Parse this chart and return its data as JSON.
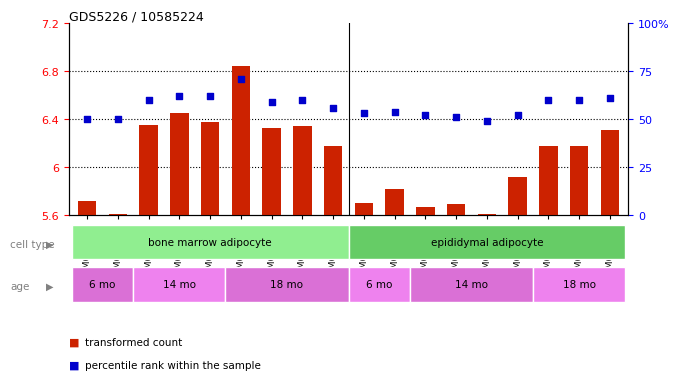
{
  "title": "GDS5226 / 10585224",
  "samples": [
    "GSM635884",
    "GSM635885",
    "GSM635886",
    "GSM635890",
    "GSM635891",
    "GSM635892",
    "GSM635896",
    "GSM635897",
    "GSM635898",
    "GSM635887",
    "GSM635888",
    "GSM635889",
    "GSM635893",
    "GSM635894",
    "GSM635895",
    "GSM635899",
    "GSM635900",
    "GSM635901"
  ],
  "bar_values": [
    5.72,
    5.61,
    6.35,
    6.45,
    6.38,
    6.84,
    6.33,
    6.34,
    6.18,
    5.7,
    5.82,
    5.67,
    5.69,
    5.61,
    5.92,
    6.18,
    6.18,
    6.31
  ],
  "dot_values": [
    50,
    50,
    60,
    62,
    62,
    71,
    59,
    60,
    56,
    53,
    54,
    52,
    51,
    49,
    52,
    60,
    60,
    61
  ],
  "bar_color": "#cc2200",
  "dot_color": "#0000cc",
  "ylim_left": [
    5.6,
    7.2
  ],
  "ylim_right": [
    0,
    100
  ],
  "yticks_left": [
    5.6,
    6.0,
    6.4,
    6.8,
    7.2
  ],
  "yticks_right": [
    0,
    25,
    50,
    75,
    100
  ],
  "ytick_labels_left": [
    "5.6",
    "6",
    "6.4",
    "6.8",
    "7.2"
  ],
  "ytick_labels_right": [
    "0",
    "25",
    "50",
    "75",
    "100%"
  ],
  "hlines": [
    6.0,
    6.4,
    6.8
  ],
  "cell_type_label": "cell type",
  "age_label": "age",
  "cell_groups": [
    {
      "label": "bone marrow adipocyte",
      "start": 0,
      "end": 8,
      "color": "#90ee90"
    },
    {
      "label": "epididymal adipocyte",
      "start": 9,
      "end": 17,
      "color": "#66cc66"
    }
  ],
  "age_groups": [
    {
      "label": "6 mo",
      "start": 0,
      "end": 1,
      "color": "#da70d6"
    },
    {
      "label": "14 mo",
      "start": 2,
      "end": 4,
      "color": "#ee82ee"
    },
    {
      "label": "18 mo",
      "start": 5,
      "end": 8,
      "color": "#da70d6"
    },
    {
      "label": "6 mo",
      "start": 9,
      "end": 10,
      "color": "#ee82ee"
    },
    {
      "label": "14 mo",
      "start": 11,
      "end": 14,
      "color": "#da70d6"
    },
    {
      "label": "18 mo",
      "start": 15,
      "end": 17,
      "color": "#ee82ee"
    }
  ],
  "legend": [
    {
      "label": "transformed count",
      "color": "#cc2200",
      "marker": "s"
    },
    {
      "label": "percentile rank within the sample",
      "color": "#0000cc",
      "marker": "s"
    }
  ],
  "background_color": "#f0f0f0",
  "plot_area_color": "#ffffff"
}
